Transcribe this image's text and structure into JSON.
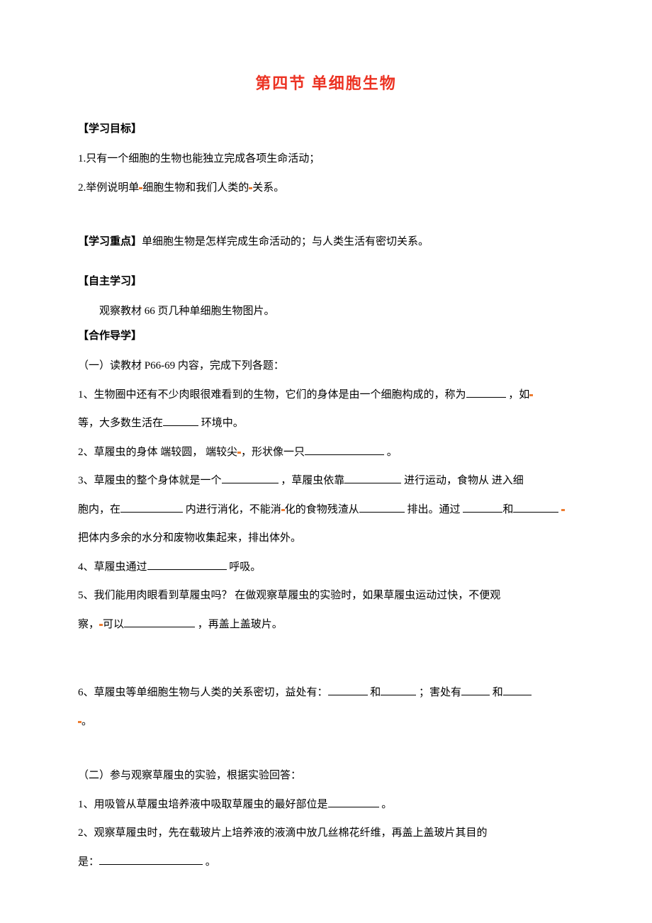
{
  "title": {
    "text": "第四节  单细胞生物",
    "color": "#ec3323",
    "fontsize_pt": 16,
    "font_weight": "bold"
  },
  "headers": {
    "objectives": "【学习目标】",
    "keypoints_prefix": "【学习重点】",
    "selfstudy": "【自主学习】",
    "coop": "【合作导学】"
  },
  "objectives": {
    "item1": "1.只有一个细胞的生物也能独立完成各项生命活动；",
    "item2_a": "2.举例说明单",
    "item2_b": "细胞生物和我们人类的",
    "item2_c": "关系。"
  },
  "keypoints": {
    "text": "单细胞生物是怎样完成生命活动的；与人类生活有密切关系。"
  },
  "selfstudy": {
    "text": "观察教材 66 页几种单细胞生物图片。"
  },
  "partA": {
    "intro": "（一）读教材 P66-69 内容，完成下列各题：",
    "q1_a": "1、生物圈中还有不少肉眼很难看到的生物，它们的身体是由一个细胞构成的，称为",
    "q1_b": " ，如",
    "q1_c": "等，大多数生活在",
    "q1_d": " 环境中。",
    "q2_a": "2、草履虫的身体 端较圆， 端较尖",
    "q2_b": "，形状像一只",
    "q2_c": " 。",
    "q3_a": "3、草履虫的整个身体就是一个",
    "q3_b": " ，草履虫依靠",
    "q3_c": " 进行运动，食物从 进入细",
    "q3_d": "胞内，在",
    "q3_e": " 内进行消化，不能消",
    "q3_f": "化的食物残渣从",
    "q3_g": " 排出。通过 ",
    "q3_h": "和",
    "q3_i": "把体内多余的水分和废物收集起来，排出体外。",
    "q4_a": "4、草履虫通过",
    "q4_b": " 呼吸。",
    "q5_a": "5、我们能用肉眼看到草履虫吗？         在做观察草履虫的实验时，如果草履虫运动过快，不便观",
    "q5_b": "察，",
    "q5_c": "可以",
    "q5_d": " ，再盖上盖玻片。",
    "q6_a": "6、草履虫等单细胞生物与人类的关系密切，益处有：",
    "q6_b": " 和",
    "q6_c": " ；害处有",
    "q6_d": " 和",
    "q6_e": "。"
  },
  "partB": {
    "intro": "（二）参与观察草履虫的实验，根据实验回答：",
    "q1_a": "1、用吸管从草履虫培养液中吸取草履虫的最好部位是",
    "q1_b": " 。",
    "q2_a": "2、观察草履虫时，先在载玻片上培养液的液滴中放几丝棉花纤维，再盖上盖玻片其目的",
    "q2_b": "是：",
    "q2_c": " 。"
  },
  "style": {
    "body_fontsize_pt": 11,
    "body_line_height": 2.3,
    "marker_color": "#ed7d31",
    "text_color": "#000000",
    "background_color": "#ffffff",
    "font_family": "SimSun"
  }
}
